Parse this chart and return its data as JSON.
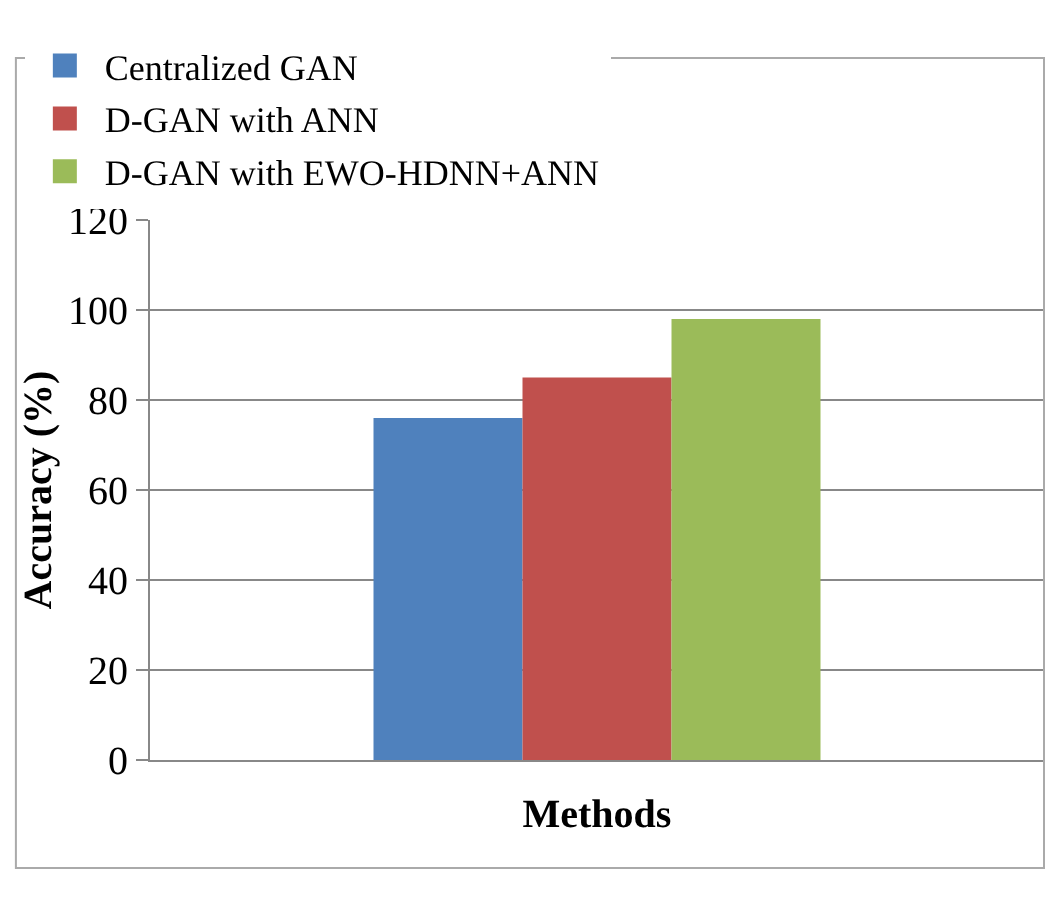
{
  "chart_data": {
    "type": "bar",
    "xlabel": "Methods",
    "ylabel": "Accuracy (%)",
    "categories": [
      null
    ],
    "series": [
      {
        "name": "Centralized GAN",
        "color": "#4f81bd",
        "values": [
          76
        ]
      },
      {
        "name": "D-GAN with ANN",
        "color": "#c0504d",
        "values": [
          85
        ]
      },
      {
        "name": "D-GAN with EWO-HDNN+ANN",
        "color": "#9bbb59",
        "values": [
          98
        ]
      }
    ],
    "ylim": [
      0,
      120
    ],
    "yticks": [
      0,
      20,
      40,
      60,
      80,
      100,
      120
    ],
    "grid": "y",
    "legend": "top left"
  }
}
